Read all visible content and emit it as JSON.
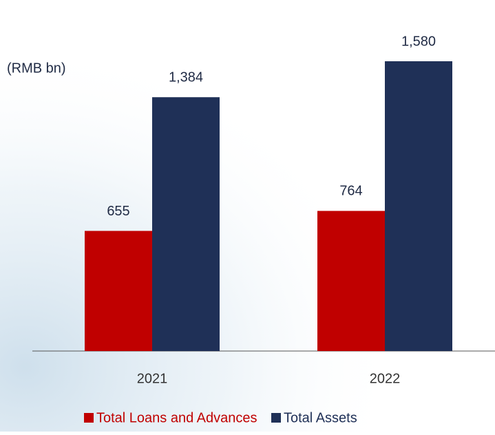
{
  "chart_data": {
    "type": "bar",
    "unit_label": "(RMB bn)",
    "categories": [
      "2021",
      "2022"
    ],
    "series": [
      {
        "name": "Total Loans and Advances",
        "color": "#c00000",
        "values": [
          655,
          764
        ],
        "value_labels": [
          "655",
          "764"
        ]
      },
      {
        "name": "Total Assets",
        "color": "#1f3057",
        "values": [
          1384,
          1580
        ],
        "value_labels": [
          "1,384",
          "1,580"
        ]
      }
    ]
  }
}
